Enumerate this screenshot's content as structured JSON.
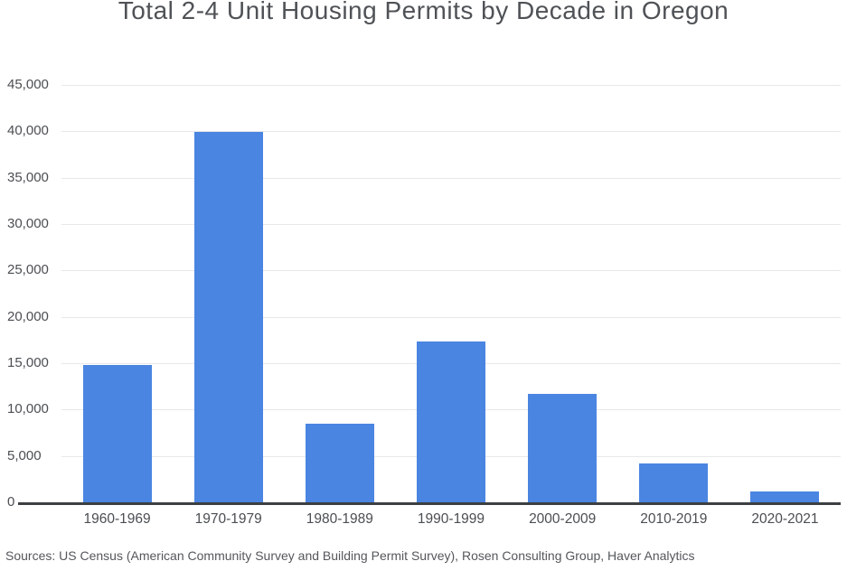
{
  "title": "Total 2-4 Unit Housing Permits by Decade in Oregon",
  "source": "Sources: US Census (American Community Survey and Building Permit Survey), Rosen Consulting Group, Haver Analytics",
  "chart_data": {
    "type": "bar",
    "title": "Total 2-4 Unit Housing Permits by Decade in Oregon",
    "categories": [
      "1960-1969",
      "1970-1979",
      "1980-1989",
      "1990-1999",
      "2000-2009",
      "2010-2019",
      "2020-2021"
    ],
    "values": [
      14900,
      40000,
      8600,
      17400,
      11800,
      4300,
      1300
    ],
    "xlabel": "",
    "ylabel": "",
    "ylim": [
      0,
      45000
    ],
    "ytick_step": 5000,
    "ytick_labels": [
      "0",
      "5,000",
      "10,000",
      "15,000",
      "20,000",
      "25,000",
      "30,000",
      "35,000",
      "40,000",
      "45,000"
    ],
    "grid": true,
    "legend": false,
    "annotation": "Sources: US Census (American Community Survey and Building Permit Survey), Rosen Consulting Group, Haver Analytics"
  },
  "colors": {
    "bar": "#4a85e1",
    "title_text": "#4f5256",
    "axis_text": "#4b4e52",
    "grid_line": "#e8e8e8",
    "axis_line": "#3c4043",
    "source_text": "#54575b",
    "background": "#ffffff"
  }
}
